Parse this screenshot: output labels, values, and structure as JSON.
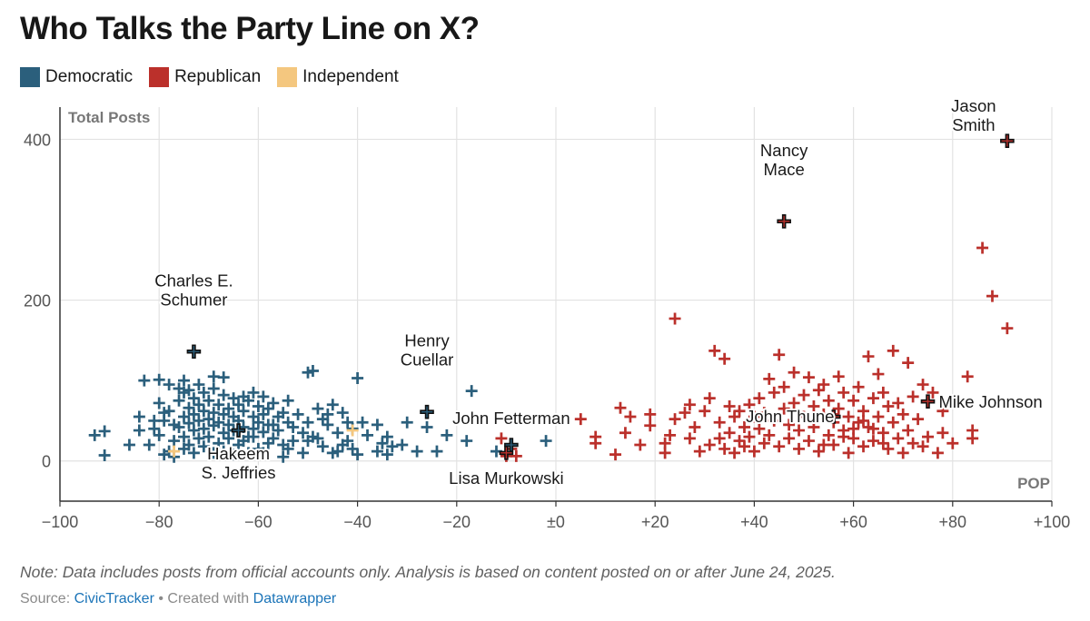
{
  "header": {
    "title": "Who Talks the Party Line on X?"
  },
  "legend": [
    {
      "label": "Democratic",
      "color": "#2b5f7c"
    },
    {
      "label": "Republican",
      "color": "#bb302b"
    },
    {
      "label": "Independent",
      "color": "#f4c77f"
    }
  ],
  "footer": {
    "note": "Note: Data includes posts from official accounts only. Analysis is based on content posted on or after June 24, 2025.",
    "source_prefix": "Source: ",
    "source_link": "CivicTracker",
    "created_sep": " • Created with ",
    "created_link": "Datawrapper"
  },
  "chart_data": {
    "type": "scatter",
    "title": "Who Talks the Party Line on X?",
    "xlabel": "POP",
    "ylabel": "Total Posts",
    "xlim": [
      -100,
      100
    ],
    "ylim": [
      -50,
      440
    ],
    "x_ticks": [
      -100,
      -80,
      -60,
      -40,
      -20,
      0,
      20,
      40,
      60,
      80,
      100
    ],
    "x_tick_labels": [
      "−100",
      "−80",
      "−60",
      "−40",
      "−20",
      "±0",
      "+20",
      "+40",
      "+60",
      "+80",
      "+100"
    ],
    "y_ticks": [
      0,
      200,
      400
    ],
    "y_tick_labels": [
      "0",
      "200",
      "400"
    ],
    "grid": true,
    "legend_position": "top-left",
    "series": [
      {
        "name": "Democratic",
        "color": "#2b5f7c",
        "points": [
          [
            -93,
            32
          ],
          [
            -91,
            37
          ],
          [
            -91,
            7
          ],
          [
            -83,
            100
          ],
          [
            -82,
            20
          ],
          [
            -81,
            40
          ],
          [
            -80,
            101
          ],
          [
            -80,
            32
          ],
          [
            -79,
            50
          ],
          [
            -79,
            8
          ],
          [
            -78,
            95
          ],
          [
            -78,
            62
          ],
          [
            -77,
            45
          ],
          [
            -77,
            25
          ],
          [
            -76,
            90
          ],
          [
            -76,
            75
          ],
          [
            -76,
            42
          ],
          [
            -75,
            100
          ],
          [
            -75,
            55
          ],
          [
            -75,
            30
          ],
          [
            -74,
            88
          ],
          [
            -74,
            66
          ],
          [
            -74,
            47
          ],
          [
            -74,
            20
          ],
          [
            -73,
            78
          ],
          [
            -73,
            58
          ],
          [
            -73,
            38
          ],
          [
            -72,
            95
          ],
          [
            -72,
            70
          ],
          [
            -72,
            50
          ],
          [
            -72,
            28
          ],
          [
            -71,
            85
          ],
          [
            -71,
            62
          ],
          [
            -71,
            40
          ],
          [
            -70,
            75
          ],
          [
            -70,
            52
          ],
          [
            -70,
            30
          ],
          [
            -69,
            90
          ],
          [
            -69,
            60
          ],
          [
            -69,
            44
          ],
          [
            -68,
            70
          ],
          [
            -68,
            48
          ],
          [
            -68,
            22
          ],
          [
            -67,
            104
          ],
          [
            -67,
            82
          ],
          [
            -67,
            58
          ],
          [
            -67,
            35
          ],
          [
            -66,
            65
          ],
          [
            -66,
            45
          ],
          [
            -66,
            28
          ],
          [
            -65,
            78
          ],
          [
            -65,
            55
          ],
          [
            -65,
            38
          ],
          [
            -64,
            70
          ],
          [
            -64,
            50
          ],
          [
            -64,
            20
          ],
          [
            -63,
            62
          ],
          [
            -63,
            42
          ],
          [
            -62,
            75
          ],
          [
            -62,
            30
          ],
          [
            -61,
            55
          ],
          [
            -61,
            40
          ],
          [
            -60,
            68
          ],
          [
            -60,
            48
          ],
          [
            -60,
            15
          ],
          [
            -59,
            80
          ],
          [
            -59,
            58
          ],
          [
            -59,
            36
          ],
          [
            -58,
            65
          ],
          [
            -58,
            45
          ],
          [
            -57,
            72
          ],
          [
            -57,
            28
          ],
          [
            -56,
            55
          ],
          [
            -56,
            38
          ],
          [
            -55,
            60
          ],
          [
            -55,
            20
          ],
          [
            -54,
            48
          ],
          [
            -54,
            75
          ],
          [
            -53,
            42
          ],
          [
            -52,
            58
          ],
          [
            -51,
            35
          ],
          [
            -50,
            110
          ],
          [
            -50,
            48
          ],
          [
            -49,
            112
          ],
          [
            -48,
            65
          ],
          [
            -48,
            28
          ],
          [
            -47,
            52
          ],
          [
            -46,
            45
          ],
          [
            -45,
            70
          ],
          [
            -44,
            35
          ],
          [
            -43,
            60
          ],
          [
            -42,
            25
          ],
          [
            -41,
            15
          ],
          [
            -40,
            103
          ],
          [
            -40,
            8
          ],
          [
            -39,
            48
          ],
          [
            -38,
            32
          ],
          [
            -36,
            45
          ],
          [
            -35,
            22
          ],
          [
            -34,
            30
          ],
          [
            -33,
            18
          ],
          [
            -30,
            48
          ],
          [
            -28,
            12
          ],
          [
            -26,
            42
          ],
          [
            -24,
            12
          ],
          [
            -22,
            32
          ],
          [
            -17,
            87
          ],
          [
            -18,
            25
          ],
          [
            -12,
            12
          ],
          [
            -2,
            25
          ],
          [
            -86,
            20
          ],
          [
            -84,
            38
          ],
          [
            -84,
            55
          ],
          [
            -80,
            72
          ],
          [
            -78,
            12
          ],
          [
            -77,
            5
          ],
          [
            -75,
            15
          ],
          [
            -73,
            10
          ],
          [
            -71,
            18
          ],
          [
            -69,
            10
          ],
          [
            -67,
            12
          ],
          [
            -65,
            8
          ],
          [
            -63,
            25
          ],
          [
            -61,
            30
          ],
          [
            -59,
            10
          ],
          [
            -57,
            45
          ],
          [
            -55,
            5
          ],
          [
            -53,
            25
          ],
          [
            -51,
            10
          ],
          [
            -49,
            30
          ],
          [
            -47,
            18
          ],
          [
            -45,
            10
          ],
          [
            -43,
            20
          ],
          [
            -41,
            40
          ],
          [
            -61,
            85
          ],
          [
            -63,
            80
          ],
          [
            -69,
            105
          ],
          [
            -75,
            85
          ],
          [
            -79,
            60
          ],
          [
            -81,
            50
          ],
          [
            -62,
            10
          ],
          [
            -58,
            22
          ],
          [
            -54,
            15
          ],
          [
            -50,
            25
          ],
          [
            -46,
            58
          ],
          [
            -44,
            12
          ],
          [
            -42,
            48
          ],
          [
            -36,
            12
          ],
          [
            -34,
            8
          ],
          [
            -31,
            20
          ]
        ]
      },
      {
        "name": "Republican",
        "color": "#bb302b",
        "points": [
          [
            -11,
            28
          ],
          [
            -10,
            6
          ],
          [
            -9,
            15
          ],
          [
            -8,
            6
          ],
          [
            5,
            52
          ],
          [
            8,
            30
          ],
          [
            8,
            22
          ],
          [
            12,
            8
          ],
          [
            13,
            66
          ],
          [
            14,
            35
          ],
          [
            15,
            55
          ],
          [
            17,
            20
          ],
          [
            19,
            58
          ],
          [
            19,
            44
          ],
          [
            22,
            22
          ],
          [
            22,
            10
          ],
          [
            23,
            32
          ],
          [
            24,
            177
          ],
          [
            24,
            52
          ],
          [
            26,
            60
          ],
          [
            27,
            70
          ],
          [
            27,
            28
          ],
          [
            28,
            42
          ],
          [
            29,
            12
          ],
          [
            30,
            62
          ],
          [
            31,
            78
          ],
          [
            31,
            20
          ],
          [
            32,
            137
          ],
          [
            33,
            28
          ],
          [
            33,
            48
          ],
          [
            34,
            127
          ],
          [
            34,
            15
          ],
          [
            35,
            68
          ],
          [
            35,
            35
          ],
          [
            36,
            55
          ],
          [
            36,
            10
          ],
          [
            37,
            62
          ],
          [
            37,
            25
          ],
          [
            38,
            42
          ],
          [
            38,
            18
          ],
          [
            39,
            70
          ],
          [
            39,
            30
          ],
          [
            40,
            55
          ],
          [
            40,
            12
          ],
          [
            41,
            78
          ],
          [
            41,
            40
          ],
          [
            42,
            22
          ],
          [
            42,
            60
          ],
          [
            43,
            102
          ],
          [
            43,
            32
          ],
          [
            44,
            85
          ],
          [
            44,
            50
          ],
          [
            45,
            132
          ],
          [
            45,
            18
          ],
          [
            46,
            92
          ],
          [
            46,
            65
          ],
          [
            47,
            28
          ],
          [
            47,
            45
          ],
          [
            48,
            110
          ],
          [
            48,
            72
          ],
          [
            49,
            38
          ],
          [
            49,
            15
          ],
          [
            50,
            82
          ],
          [
            50,
            55
          ],
          [
            51,
            104
          ],
          [
            51,
            25
          ],
          [
            52,
            68
          ],
          [
            52,
            42
          ],
          [
            53,
            88
          ],
          [
            53,
            12
          ],
          [
            54,
            95
          ],
          [
            54,
            58
          ],
          [
            55,
            32
          ],
          [
            55,
            75
          ],
          [
            56,
            48
          ],
          [
            56,
            20
          ],
          [
            57,
            105
          ],
          [
            57,
            65
          ],
          [
            58,
            38
          ],
          [
            58,
            85
          ],
          [
            59,
            55
          ],
          [
            59,
            10
          ],
          [
            60,
            75
          ],
          [
            60,
            28
          ],
          [
            61,
            48
          ],
          [
            61,
            92
          ],
          [
            62,
            62
          ],
          [
            62,
            18
          ],
          [
            63,
            130
          ],
          [
            63,
            42
          ],
          [
            64,
            78
          ],
          [
            64,
            25
          ],
          [
            65,
            108
          ],
          [
            65,
            55
          ],
          [
            66,
            35
          ],
          [
            66,
            85
          ],
          [
            67,
            68
          ],
          [
            67,
            15
          ],
          [
            68,
            137
          ],
          [
            68,
            48
          ],
          [
            69,
            28
          ],
          [
            69,
            72
          ],
          [
            70,
            58
          ],
          [
            70,
            10
          ],
          [
            71,
            122
          ],
          [
            71,
            38
          ],
          [
            72,
            80
          ],
          [
            72,
            22
          ],
          [
            73,
            52
          ],
          [
            74,
            95
          ],
          [
            74,
            18
          ],
          [
            75,
            30
          ],
          [
            76,
            85
          ],
          [
            77,
            10
          ],
          [
            78,
            35
          ],
          [
            78,
            62
          ],
          [
            80,
            22
          ],
          [
            83,
            105
          ],
          [
            84,
            28
          ],
          [
            84,
            38
          ],
          [
            86,
            265
          ],
          [
            88,
            205
          ],
          [
            91,
            165
          ],
          [
            60,
            40
          ],
          [
            58,
            30
          ],
          [
            62,
            50
          ],
          [
            64,
            40
          ],
          [
            66,
            22
          ],
          [
            56,
            58
          ],
          [
            54,
            20
          ]
        ]
      },
      {
        "name": "Independent",
        "color": "#f4c77f",
        "points": [
          [
            -77,
            12
          ],
          [
            -41,
            38
          ]
        ]
      }
    ],
    "highlighted": [
      {
        "label": "Jason Smith",
        "x": 91,
        "y": 398,
        "party": "Republican"
      },
      {
        "label": "Nancy Mace",
        "x": 46,
        "y": 298,
        "party": "Republican"
      },
      {
        "label": "Charles E. Schumer",
        "x": -73,
        "y": 136,
        "party": "Democratic"
      },
      {
        "label": "Henry Cuellar",
        "x": -26,
        "y": 61,
        "party": "Democratic"
      },
      {
        "label": "Hakeem S. Jeffries",
        "x": -64,
        "y": 38,
        "party": "Democratic"
      },
      {
        "label": "John Fetterman",
        "x": -9,
        "y": 20,
        "party": "Democratic"
      },
      {
        "label": "Lisa Murkowski",
        "x": -10,
        "y": 10,
        "party": "Republican"
      },
      {
        "label": "John Thune",
        "x": 56,
        "y": 55,
        "party": "Republican"
      },
      {
        "label": "Mike Johnson",
        "x": 75,
        "y": 74,
        "party": "Republican"
      }
    ]
  }
}
